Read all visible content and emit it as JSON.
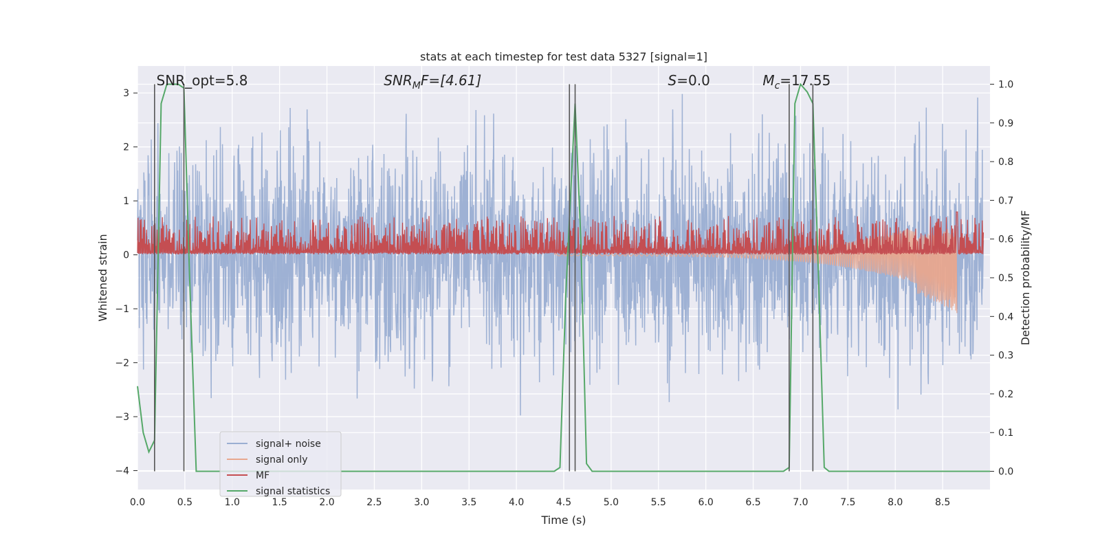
{
  "chart_data": {
    "type": "line",
    "title": "stats at each timestep for test data 5327 [signal=1]",
    "xlabel": "Time (s)",
    "ylabel_left": "Whitened strain",
    "ylabel_right": "Detection probability/MF",
    "xlim": [
      0.0,
      9.0
    ],
    "ylim_left": [
      -4.35,
      3.5
    ],
    "ylim_right": [
      -0.047,
      1.047
    ],
    "grid": true,
    "xticks": [
      "0.0",
      "0.5",
      "1.0",
      "1.5",
      "2.0",
      "2.5",
      "3.0",
      "3.5",
      "4.0",
      "4.5",
      "5.0",
      "5.5",
      "6.0",
      "6.5",
      "7.0",
      "7.5",
      "8.0",
      "8.5"
    ],
    "yticks_left": [
      "3",
      "2",
      "1",
      "0",
      "−1",
      "−2",
      "−3",
      "−4"
    ],
    "yticks_right": [
      "1.0",
      "0.9",
      "0.8",
      "0.7",
      "0.6",
      "0.5",
      "0.4",
      "0.3",
      "0.2",
      "0.1",
      "0.0"
    ],
    "legend_position": "lower-left",
    "annotations": [
      {
        "main": "SNR_opt=5.8",
        "x": 0.2
      },
      {
        "main": "SNR",
        "sub": "M",
        "rest": "F=[4.61]",
        "x": 2.6,
        "italic": true
      },
      {
        "main": "S",
        "rest": "=0.0",
        "x": 5.6,
        "italic": true
      },
      {
        "main": "M",
        "sub": "c",
        "rest": "=17.55",
        "x": 6.6,
        "italic": true
      }
    ],
    "vlines_x": [
      0.18,
      0.49,
      4.56,
      4.62,
      6.88,
      7.13
    ],
    "series": [
      {
        "name": "signal+ noise",
        "color": "#9aaed2",
        "axis": "left",
        "envelope": {
          "mean": 0.0,
          "sigma": 1.0,
          "peak_max": 3.3,
          "peak_min": -4.0
        }
      },
      {
        "name": "signal only",
        "color": "#e8a78e",
        "axis": "left",
        "chirp": {
          "start": 4.4,
          "end": 8.65,
          "amp_start": 0.02,
          "amp_end": 0.8
        }
      },
      {
        "name": "MF",
        "color": "#c44e52",
        "axis": "right",
        "band": {
          "base": 0.56,
          "typical_top": 0.6,
          "max": 0.66
        },
        "spike": {
          "x": 8.65,
          "y": 0.67
        }
      },
      {
        "name": "signal statistics",
        "color": "#55a868",
        "axis": "right",
        "x": [
          0.0,
          0.06,
          0.12,
          0.18,
          0.25,
          0.31,
          0.37,
          0.43,
          0.49,
          0.55,
          0.62,
          0.7,
          1.0,
          2.0,
          3.0,
          4.0,
          4.4,
          4.46,
          4.52,
          4.58,
          4.62,
          4.68,
          4.74,
          4.8,
          5.0,
          6.0,
          6.82,
          6.88,
          6.94,
          7.0,
          7.07,
          7.13,
          7.19,
          7.25,
          7.3,
          8.0,
          9.0
        ],
        "y": [
          0.22,
          0.1,
          0.05,
          0.08,
          0.95,
          1.0,
          1.0,
          1.0,
          0.99,
          0.5,
          0.0,
          0.0,
          0.0,
          0.0,
          0.0,
          0.0,
          0.0,
          0.01,
          0.45,
          0.75,
          0.95,
          0.6,
          0.02,
          0.0,
          0.0,
          0.0,
          0.0,
          0.01,
          0.95,
          1.0,
          0.98,
          0.95,
          0.5,
          0.01,
          0.0,
          0.0,
          0.0
        ]
      }
    ]
  }
}
